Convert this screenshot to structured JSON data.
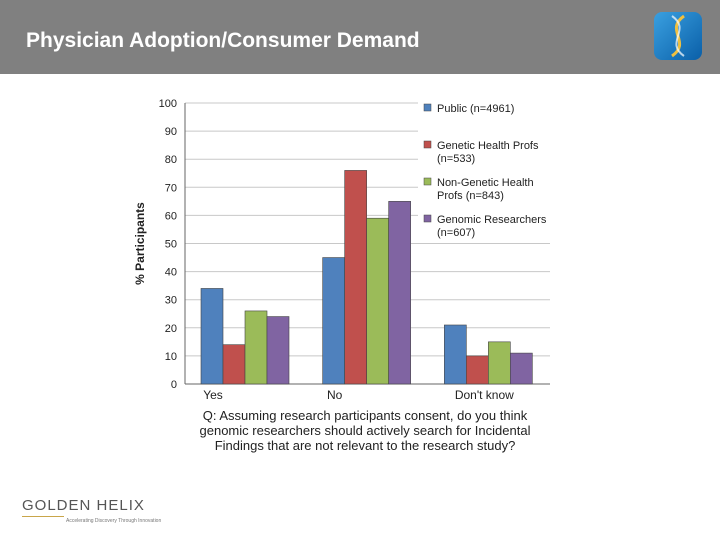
{
  "header": {
    "title": "Physician Adoption/Consumer Demand"
  },
  "footer": {
    "brand": "GOLDEN HELIX",
    "tagline": "Accelerating Discovery Through Innovation"
  },
  "colors": {
    "header_bg": "#808080",
    "series": [
      "#4f81bd",
      "#c0504d",
      "#9bbb59",
      "#8064a2"
    ]
  },
  "chart_data": {
    "type": "bar",
    "title": "",
    "ylabel": "% Participants",
    "xlabel": "",
    "categories": [
      "Yes",
      "No",
      "Don't know"
    ],
    "ylim": [
      0,
      100
    ],
    "yticks": [
      0,
      10,
      20,
      30,
      40,
      50,
      60,
      70,
      80,
      90,
      100
    ],
    "grid": true,
    "legend_position": "top-right",
    "series": [
      {
        "name": "Public (n=4961)",
        "legend_lines": [
          "Public (n=4961)"
        ],
        "color": "#4f81bd",
        "values": [
          34,
          45,
          21
        ]
      },
      {
        "name": "Genetic Health Profs (n=533)",
        "legend_lines": [
          "Genetic Health Profs",
          "(n=533)"
        ],
        "color": "#c0504d",
        "values": [
          14,
          76,
          10
        ]
      },
      {
        "name": "Non-Genetic Health Profs (n=843)",
        "legend_lines": [
          "Non-Genetic Health",
          "Profs (n=843)"
        ],
        "color": "#9bbb59",
        "values": [
          26,
          59,
          15
        ]
      },
      {
        "name": "Genomic Researchers (n=607)",
        "legend_lines": [
          "Genomic Researchers",
          "(n=607)"
        ],
        "color": "#8064a2",
        "values": [
          24,
          65,
          11
        ]
      }
    ],
    "caption": "Q: Assuming research participants consent, do you think genomic researchers should actively search for Incidental Findings that are not relevant to the research study?"
  }
}
